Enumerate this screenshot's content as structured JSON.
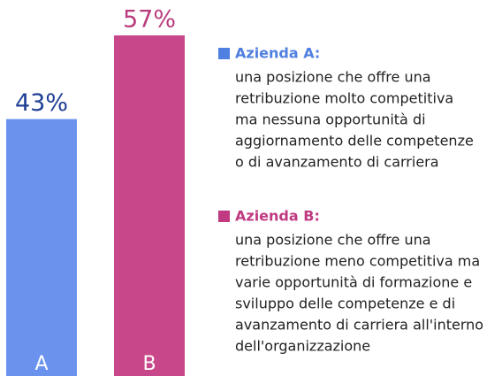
{
  "chart_data": {
    "type": "bar",
    "categories": [
      "A",
      "B"
    ],
    "values": [
      43,
      57
    ],
    "value_labels": [
      "43%",
      "57%"
    ],
    "colors": [
      "#6b93ee",
      "#c8478a"
    ],
    "label_colors": [
      "#1f3f94",
      "#b83c7d"
    ],
    "ylim": [
      0,
      57
    ],
    "legend": [
      {
        "name": "Azienda A:",
        "color": "#4f7fe0",
        "lines": [
          "una posizione che offre una",
          "retribuzione molto competitiva",
          "ma nessuna opportunità di",
          "aggiornamento delle competenze",
          "o di avanzamento di carriera"
        ]
      },
      {
        "name": "Azienda B:",
        "color": "#c03a82",
        "lines": [
          "una posizione che offre una",
          "retribuzione meno competitiva ma",
          "varie opportunità di formazione e",
          "sviluppo delle competenze e di",
          "avanzamento di carriera all'interno",
          "dell'organizzazione"
        ]
      }
    ]
  }
}
